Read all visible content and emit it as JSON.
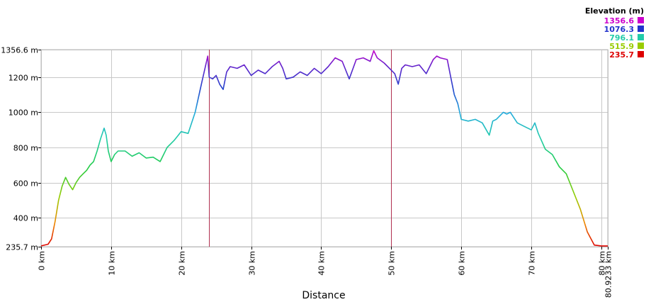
{
  "chart_data": {
    "type": "line",
    "title": "",
    "xlabel": "Distance",
    "ylabel": "",
    "xlim": [
      0,
      80.9233
    ],
    "ylim": [
      235.7,
      1356.6
    ],
    "grid": true,
    "x_ticks": [
      {
        "value": 0,
        "label": "0 km"
      },
      {
        "value": 10,
        "label": "10 km"
      },
      {
        "value": 20,
        "label": "20 km"
      },
      {
        "value": 30,
        "label": "30 km"
      },
      {
        "value": 40,
        "label": "40 km"
      },
      {
        "value": 50,
        "label": "50 km"
      },
      {
        "value": 60,
        "label": "60 km"
      },
      {
        "value": 70,
        "label": "70 km"
      },
      {
        "value": 80,
        "label": "80 km"
      },
      {
        "value": 80.9233,
        "label": "80.9233 km"
      }
    ],
    "y_ticks": [
      {
        "value": 235.7,
        "label": "235.7 m"
      },
      {
        "value": 400,
        "label": "400 m"
      },
      {
        "value": 600,
        "label": "600 m"
      },
      {
        "value": 800,
        "label": "800 m"
      },
      {
        "value": 1000,
        "label": "1000 m"
      },
      {
        "value": 1200,
        "label": "1200 m"
      },
      {
        "value": 1356.6,
        "label": "1356.6 m"
      }
    ],
    "markers": [
      24,
      50
    ],
    "legend": {
      "title": "Elevation (m)",
      "placement": "top-right",
      "entries": [
        {
          "label": "1356.6",
          "color": "#cc00cc"
        },
        {
          "label": "1076.3",
          "color": "#2233cc"
        },
        {
          "label": "796.1",
          "color": "#22ccaa"
        },
        {
          "label": "515.9",
          "color": "#99cc00"
        },
        {
          "label": "235.7",
          "color": "#dd0000"
        }
      ]
    },
    "series": [
      {
        "x": [
          0,
          1,
          1.5,
          2,
          2.5,
          3,
          3.5,
          4,
          4.5,
          5,
          5.5,
          6,
          6.5,
          7,
          7.5,
          8,
          8.5,
          9,
          9.3,
          9.6,
          10,
          10.5,
          11,
          12,
          13,
          14,
          15,
          16,
          17,
          18,
          19,
          20,
          21,
          22,
          23,
          23.8,
          24,
          24.5,
          25,
          25.5,
          26,
          26.5,
          27,
          28,
          29,
          30,
          31,
          32,
          33,
          34,
          34.5,
          35,
          36,
          37,
          38,
          39,
          40,
          41,
          42,
          43,
          44,
          45,
          46,
          47,
          47.5,
          48,
          49,
          50,
          50.5,
          51,
          51.5,
          52,
          53,
          54,
          55,
          56,
          56.5,
          57,
          58,
          58.5,
          59,
          59.5,
          60,
          61,
          62,
          63,
          64,
          64.5,
          65,
          66,
          66.5,
          67,
          68,
          69,
          70,
          70.5,
          71,
          72,
          73,
          74,
          75,
          76,
          77,
          78,
          79,
          80,
          80.9233
        ],
        "values": [
          240,
          250,
          280,
          380,
          500,
          580,
          630,
          590,
          560,
          600,
          630,
          650,
          670,
          700,
          720,
          780,
          850,
          910,
          870,
          780,
          720,
          760,
          780,
          780,
          750,
          770,
          740,
          745,
          720,
          800,
          840,
          890,
          880,
          1000,
          1180,
          1320,
          1200,
          1190,
          1210,
          1160,
          1130,
          1230,
          1260,
          1250,
          1270,
          1210,
          1240,
          1220,
          1260,
          1290,
          1250,
          1190,
          1200,
          1230,
          1210,
          1250,
          1220,
          1260,
          1310,
          1290,
          1190,
          1300,
          1310,
          1290,
          1350,
          1310,
          1280,
          1240,
          1220,
          1160,
          1250,
          1270,
          1260,
          1270,
          1220,
          1300,
          1320,
          1310,
          1300,
          1200,
          1100,
          1050,
          960,
          950,
          960,
          940,
          870,
          950,
          960,
          1000,
          990,
          1000,
          940,
          920,
          900,
          940,
          880,
          790,
          760,
          690,
          650,
          550,
          450,
          320,
          245,
          240,
          240
        ]
      }
    ]
  }
}
